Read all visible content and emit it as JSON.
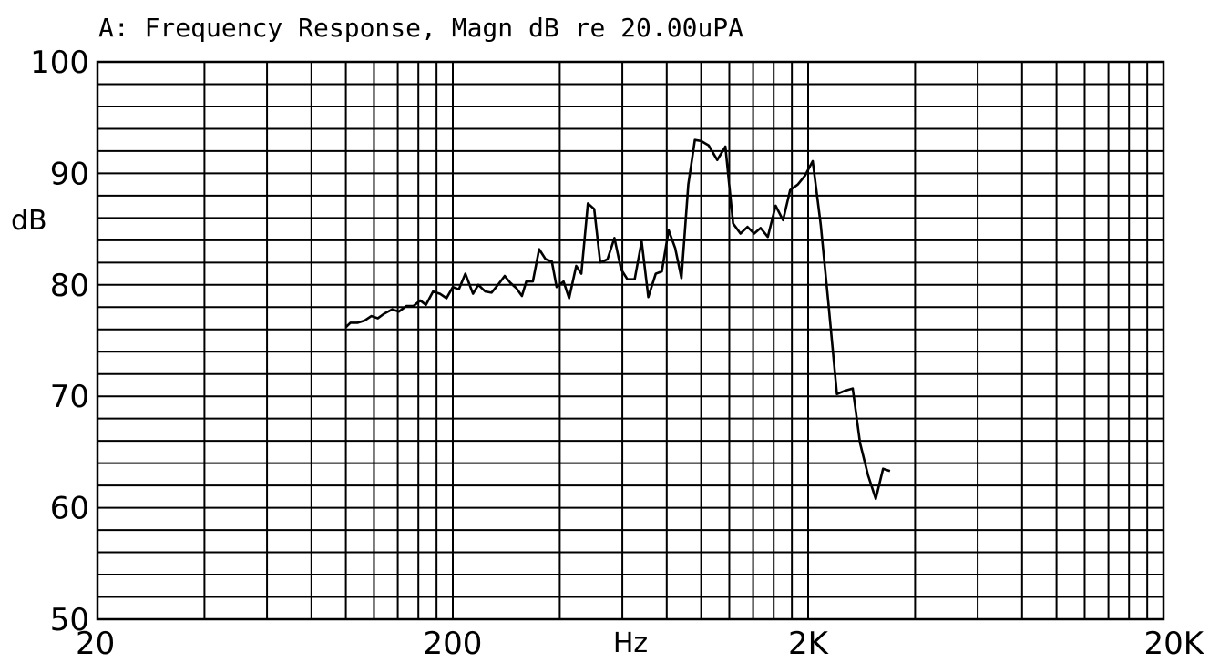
{
  "chart_data": {
    "type": "line",
    "title": "A: Frequency Response, Magn dB re 20.00uPA",
    "xlabel": "Hz",
    "ylabel": "dB",
    "x_scale": "log",
    "xlim": [
      20,
      20000
    ],
    "ylim": [
      50,
      100
    ],
    "grid": true,
    "x_tick_labels": [
      {
        "value": 20,
        "label": "20"
      },
      {
        "value": 200,
        "label": "200"
      },
      {
        "value": 2000,
        "label": "2K"
      },
      {
        "value": 20000,
        "label": "20K"
      }
    ],
    "y_tick_labels": [
      {
        "value": 100,
        "label": "100"
      },
      {
        "value": 90,
        "label": "90"
      },
      {
        "value": 80,
        "label": "80"
      },
      {
        "value": 70,
        "label": "70"
      },
      {
        "value": 60,
        "label": "60"
      },
      {
        "value": 50,
        "label": "50"
      }
    ],
    "series": [
      {
        "color": "#000000",
        "points": [
          [
            100,
            76.2
          ],
          [
            103,
            76.6
          ],
          [
            108,
            76.6
          ],
          [
            113,
            76.8
          ],
          [
            118,
            77.2
          ],
          [
            123,
            77.0
          ],
          [
            128,
            77.4
          ],
          [
            135,
            77.8
          ],
          [
            141,
            77.6
          ],
          [
            148,
            78.1
          ],
          [
            155,
            78.1
          ],
          [
            162,
            78.6
          ],
          [
            168,
            78.2
          ],
          [
            176,
            79.4
          ],
          [
            184,
            79.2
          ],
          [
            192,
            78.8
          ],
          [
            200,
            79.8
          ],
          [
            208,
            79.6
          ],
          [
            217,
            81.0
          ],
          [
            228,
            79.2
          ],
          [
            236,
            80.0
          ],
          [
            247,
            79.4
          ],
          [
            257,
            79.3
          ],
          [
            268,
            80.0
          ],
          [
            280,
            80.8
          ],
          [
            290,
            80.2
          ],
          [
            302,
            79.7
          ],
          [
            313,
            79.0
          ],
          [
            322,
            80.3
          ],
          [
            336,
            80.3
          ],
          [
            350,
            83.2
          ],
          [
            365,
            82.3
          ],
          [
            380,
            82.1
          ],
          [
            392,
            79.8
          ],
          [
            410,
            80.3
          ],
          [
            425,
            78.8
          ],
          [
            445,
            81.7
          ],
          [
            460,
            81.0
          ],
          [
            480,
            87.3
          ],
          [
            500,
            86.8
          ],
          [
            520,
            82.0
          ],
          [
            545,
            82.3
          ],
          [
            570,
            84.2
          ],
          [
            595,
            81.4
          ],
          [
            620,
            80.5
          ],
          [
            650,
            80.5
          ],
          [
            680,
            83.9
          ],
          [
            710,
            78.9
          ],
          [
            745,
            81.0
          ],
          [
            775,
            81.2
          ],
          [
            810,
            84.9
          ],
          [
            845,
            83.3
          ],
          [
            880,
            80.6
          ],
          [
            920,
            89.0
          ],
          [
            960,
            93.0
          ],
          [
            1000,
            92.9
          ],
          [
            1050,
            92.5
          ],
          [
            1110,
            91.2
          ],
          [
            1170,
            92.4
          ],
          [
            1230,
            85.5
          ],
          [
            1290,
            84.6
          ],
          [
            1350,
            85.2
          ],
          [
            1410,
            84.6
          ],
          [
            1470,
            85.1
          ],
          [
            1540,
            84.3
          ],
          [
            1620,
            87.1
          ],
          [
            1700,
            85.8
          ],
          [
            1780,
            88.5
          ],
          [
            1870,
            89.0
          ],
          [
            1960,
            89.8
          ],
          [
            2060,
            91.1
          ],
          [
            2170,
            85.4
          ],
          [
            2280,
            78.4
          ],
          [
            2410,
            70.2
          ],
          [
            2540,
            70.5
          ],
          [
            2670,
            70.7
          ],
          [
            2800,
            65.8
          ],
          [
            2950,
            62.9
          ],
          [
            3100,
            60.8
          ],
          [
            3250,
            63.5
          ],
          [
            3400,
            63.3
          ]
        ]
      }
    ]
  }
}
